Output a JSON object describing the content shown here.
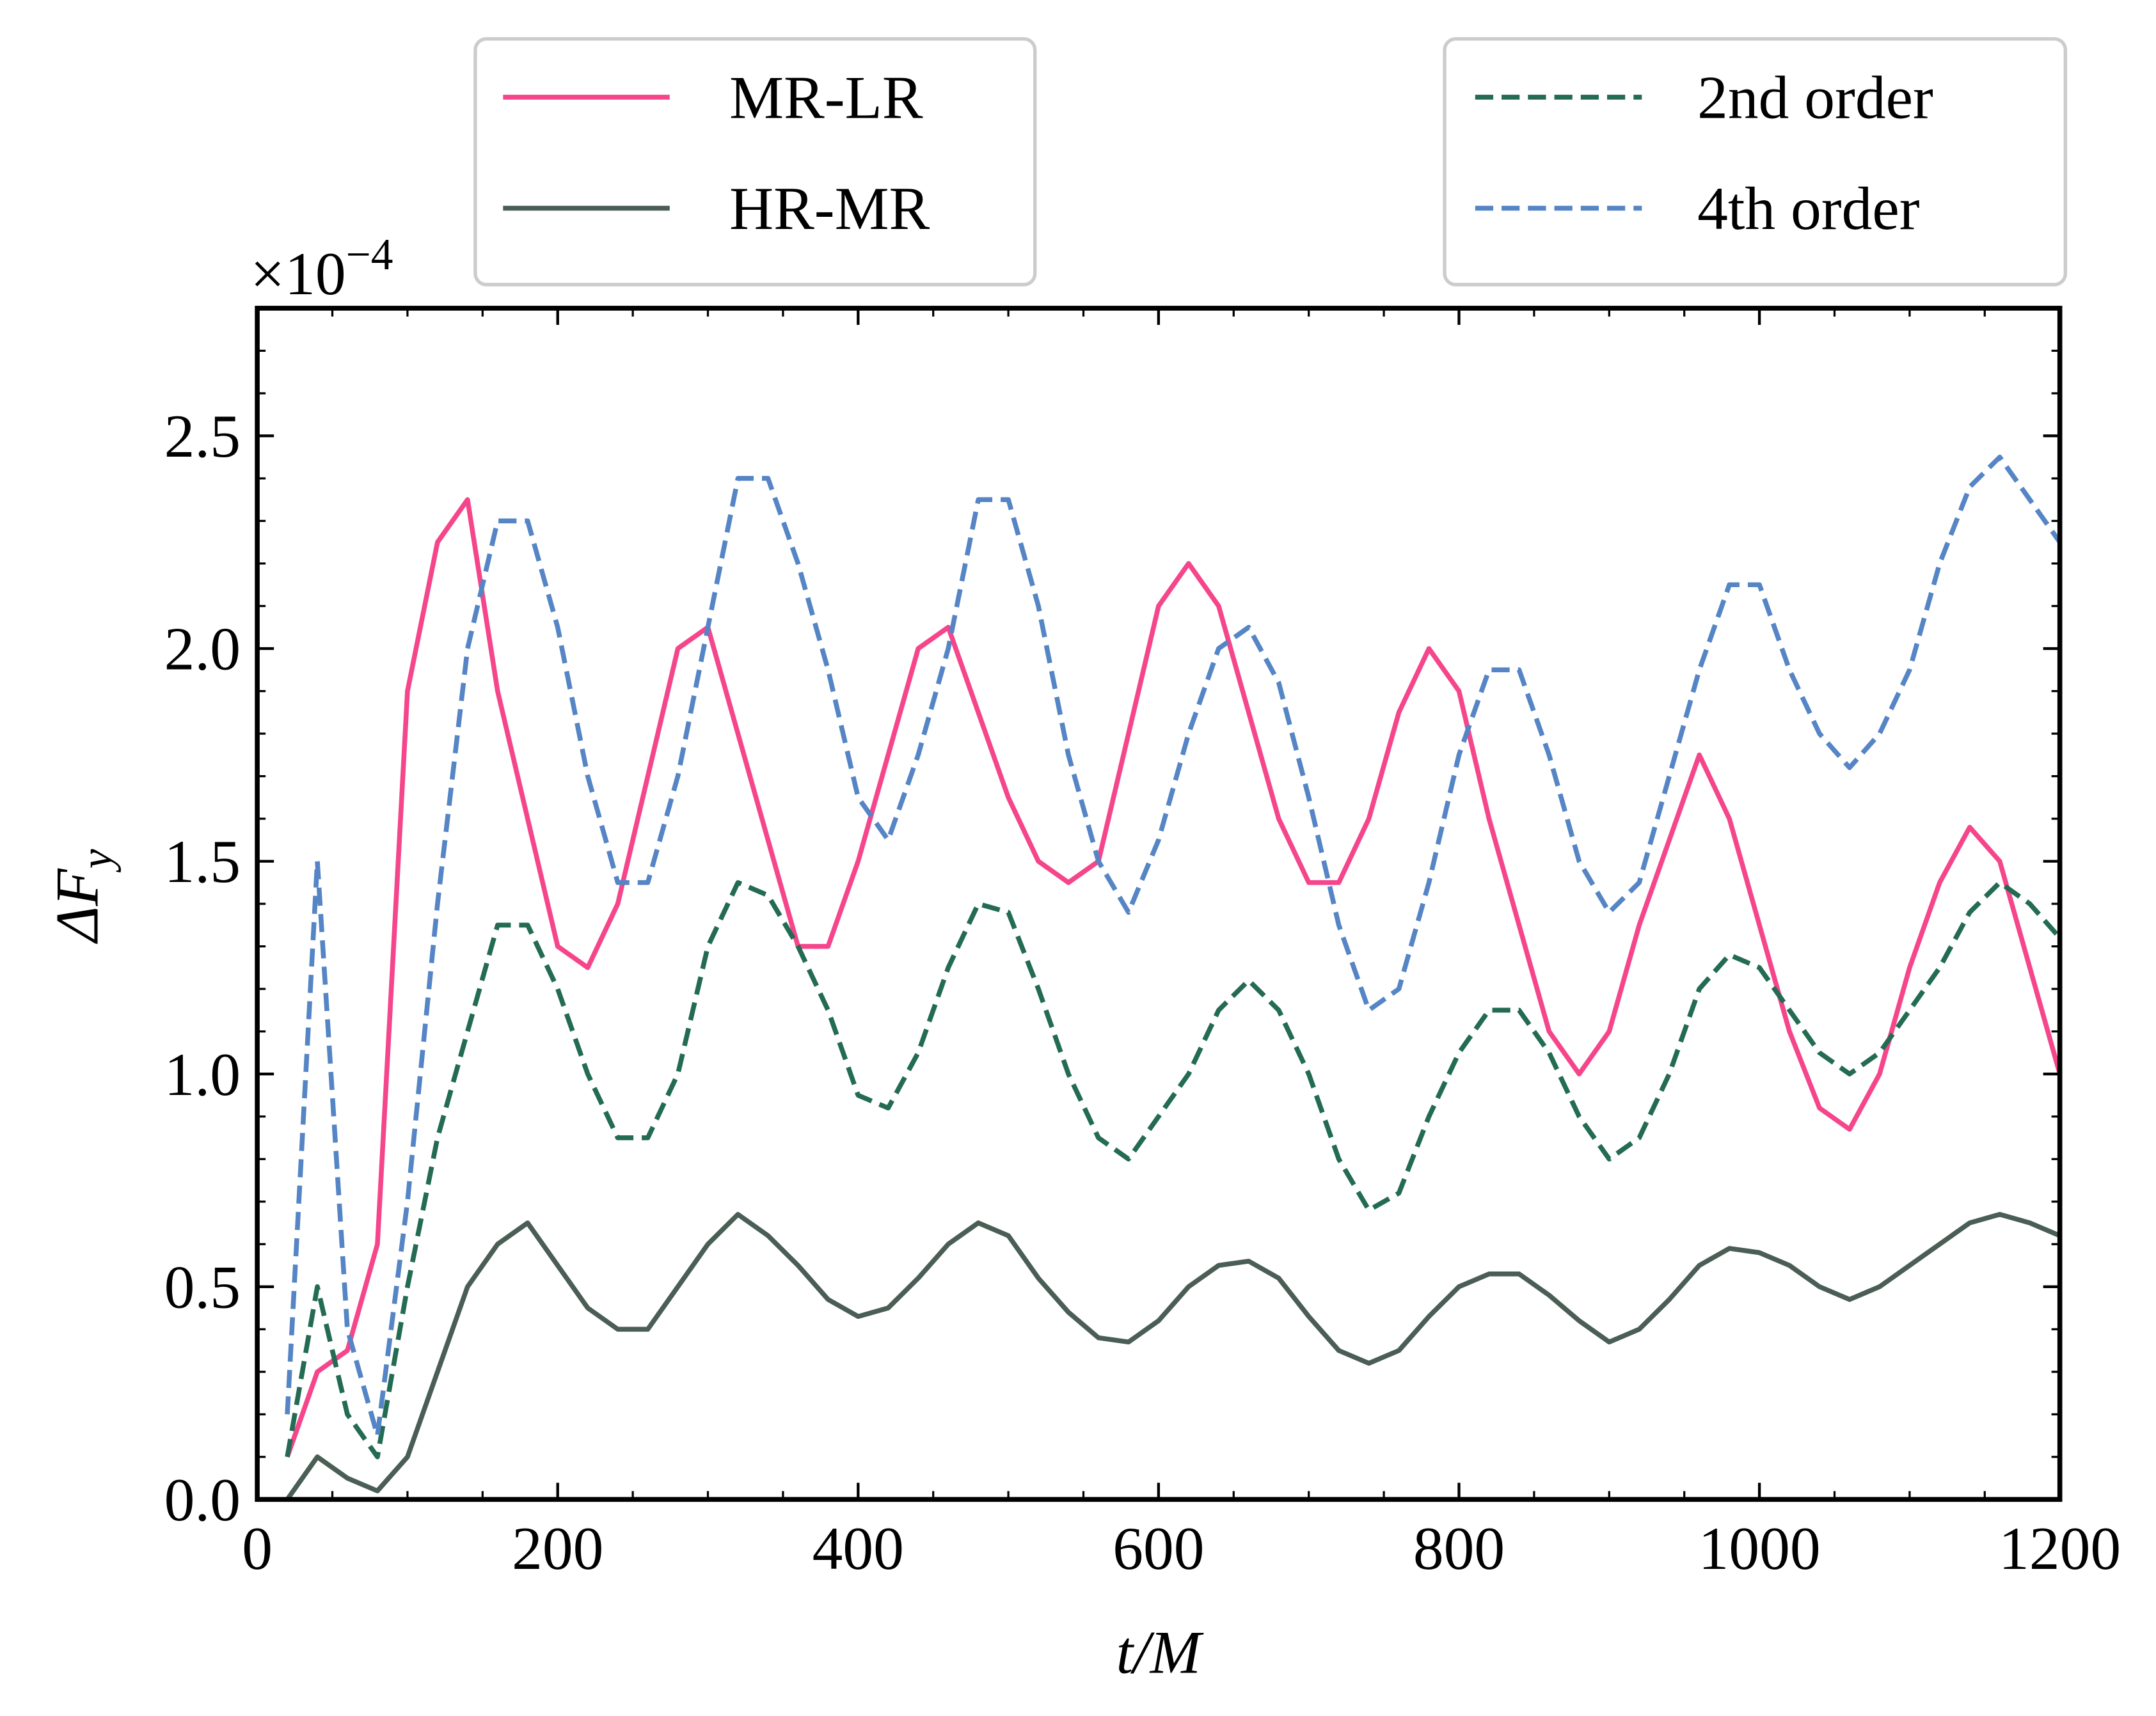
{
  "chart_data": {
    "type": "line",
    "xlabel": "t/M",
    "ylabel": {
      "main": "ΔF",
      "sub": "y"
    },
    "y_multiplier": {
      "base": "×10",
      "exponent": "−4"
    },
    "xlim": [
      0,
      1200
    ],
    "ylim": [
      0,
      2.8
    ],
    "xticks": [
      0,
      200,
      400,
      600,
      800,
      1000,
      1200
    ],
    "yticks": [
      {
        "value": 0,
        "label": "0.0"
      },
      0.5,
      {
        "value": 1,
        "label": "1.0"
      },
      1.5,
      {
        "value": 2,
        "label": "2.0"
      },
      2.5
    ],
    "xticks_minor": [
      50,
      100,
      150,
      250,
      300,
      350,
      450,
      500,
      550,
      650,
      700,
      750,
      850,
      900,
      950,
      1050,
      1100,
      1150
    ],
    "yticks_minor": [
      0.1,
      0.2,
      0.3,
      0.4,
      0.6,
      0.7,
      0.8,
      0.9,
      1.1,
      1.2,
      1.3,
      1.4,
      1.6,
      1.7,
      1.8,
      1.9,
      2.1,
      2.2,
      2.3,
      2.4,
      2.6,
      2.7
    ],
    "grid": false,
    "x": [
      20,
      40,
      60,
      80,
      100,
      120,
      140,
      160,
      180,
      200,
      220,
      240,
      260,
      280,
      300,
      320,
      340,
      360,
      380,
      400,
      420,
      440,
      460,
      480,
      500,
      520,
      540,
      560,
      580,
      600,
      620,
      640,
      660,
      680,
      700,
      720,
      740,
      760,
      780,
      800,
      820,
      840,
      860,
      880,
      900,
      920,
      940,
      960,
      980,
      1000,
      1020,
      1040,
      1060,
      1080,
      1100,
      1120,
      1140,
      1160,
      1180,
      1200
    ],
    "series": [
      {
        "name": "MR-LR",
        "color": "#f5458b",
        "style": "solid",
        "values": [
          0.1,
          0.3,
          0.35,
          0.6,
          1.9,
          2.25,
          2.35,
          1.9,
          1.6,
          1.3,
          1.25,
          1.4,
          1.7,
          2.0,
          2.05,
          1.8,
          1.55,
          1.3,
          1.3,
          1.5,
          1.75,
          2.0,
          2.05,
          1.85,
          1.65,
          1.5,
          1.45,
          1.5,
          1.8,
          2.1,
          2.2,
          2.1,
          1.85,
          1.6,
          1.45,
          1.45,
          1.6,
          1.85,
          2.0,
          1.9,
          1.6,
          1.35,
          1.1,
          1.0,
          1.1,
          1.35,
          1.55,
          1.75,
          1.6,
          1.35,
          1.1,
          0.92,
          0.87,
          1.0,
          1.25,
          1.45,
          1.58,
          1.5,
          1.25,
          1.0
        ]
      },
      {
        "name": "HR-MR",
        "color": "#4a5e55",
        "style": "solid",
        "values": [
          0.0,
          0.1,
          0.05,
          0.02,
          0.1,
          0.3,
          0.5,
          0.6,
          0.65,
          0.55,
          0.45,
          0.4,
          0.4,
          0.5,
          0.6,
          0.67,
          0.62,
          0.55,
          0.47,
          0.43,
          0.45,
          0.52,
          0.6,
          0.65,
          0.62,
          0.52,
          0.44,
          0.38,
          0.37,
          0.42,
          0.5,
          0.55,
          0.56,
          0.52,
          0.43,
          0.35,
          0.32,
          0.35,
          0.43,
          0.5,
          0.53,
          0.53,
          0.48,
          0.42,
          0.37,
          0.4,
          0.47,
          0.55,
          0.59,
          0.58,
          0.55,
          0.5,
          0.47,
          0.5,
          0.55,
          0.6,
          0.65,
          0.67,
          0.65,
          0.62
        ]
      },
      {
        "name": "2nd order",
        "color": "#236b52",
        "style": "dashed",
        "values": [
          0.1,
          0.5,
          0.2,
          0.1,
          0.5,
          0.85,
          1.1,
          1.35,
          1.35,
          1.2,
          1.0,
          0.85,
          0.85,
          1.0,
          1.3,
          1.45,
          1.42,
          1.3,
          1.15,
          0.95,
          0.92,
          1.05,
          1.25,
          1.4,
          1.38,
          1.2,
          1.0,
          0.85,
          0.8,
          0.9,
          1.0,
          1.15,
          1.22,
          1.15,
          1.0,
          0.8,
          0.68,
          0.72,
          0.9,
          1.05,
          1.15,
          1.15,
          1.05,
          0.9,
          0.8,
          0.85,
          1.0,
          1.2,
          1.28,
          1.25,
          1.15,
          1.05,
          1.0,
          1.05,
          1.15,
          1.25,
          1.38,
          1.45,
          1.4,
          1.32
        ]
      },
      {
        "name": "4th order",
        "color": "#5585c5",
        "style": "dashed",
        "values": [
          0.2,
          1.5,
          0.4,
          0.15,
          0.7,
          1.4,
          2.0,
          2.3,
          2.3,
          2.05,
          1.7,
          1.45,
          1.45,
          1.7,
          2.05,
          2.4,
          2.4,
          2.2,
          1.95,
          1.65,
          1.55,
          1.75,
          2.0,
          2.35,
          2.35,
          2.1,
          1.75,
          1.5,
          1.38,
          1.55,
          1.8,
          2.0,
          2.05,
          1.92,
          1.65,
          1.35,
          1.15,
          1.2,
          1.45,
          1.75,
          1.95,
          1.95,
          1.75,
          1.5,
          1.38,
          1.45,
          1.7,
          1.95,
          2.15,
          2.15,
          1.95,
          1.8,
          1.72,
          1.8,
          1.95,
          2.2,
          2.38,
          2.45,
          2.35,
          2.25
        ]
      }
    ]
  }
}
